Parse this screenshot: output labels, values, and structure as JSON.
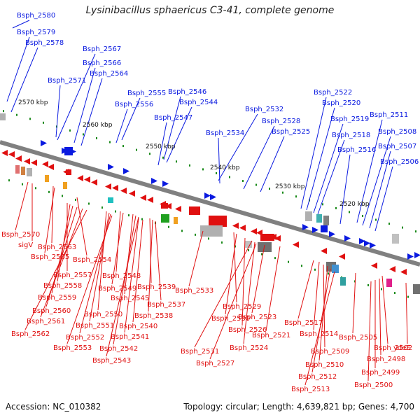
{
  "title": "Lysinibacillus sphaericus C3-41, complete genome",
  "accession": "Accession: NC_010382",
  "topology": "Topology: circular; Length: 4,639,821 bp; Genes: 4,700",
  "colors": {
    "forward": "#0a1ae0",
    "reverse": "#e01010",
    "backbone": "#808080",
    "tick_dot": "#1a8a1a"
  },
  "scale_ticks": [
    "2570 kbp",
    "2560 kbp",
    "2550 kbp",
    "2540 kbp",
    "2530 kbp",
    "2520 kbp"
  ],
  "forward_genes": [
    "Bsph_2580",
    "Bsph_2579",
    "Bsph_2578",
    "Bsph_2567",
    "Bsph_2566",
    "Bsph_2564",
    "Bsph_2571",
    "Bsph_2555",
    "Bsph_2556",
    "Bsph_2546",
    "Bsph_2544",
    "Bsph_2547",
    "Bsph_2532",
    "Bsph_2534",
    "Bsph_2528",
    "Bsph_2525",
    "Bsph_2522",
    "Bsph_2520",
    "Bsph_2519",
    "Bsph_2518",
    "Bsph_2516",
    "Bsph_2511",
    "Bsph_2508",
    "Bsph_2507",
    "Bsph_2506"
  ],
  "reverse_genes": [
    "Bsph_2570",
    "sigV",
    "Bsph_2563",
    "Bsph_2565",
    "Bsph_2554",
    "Bsph_2557",
    "Bsph_2558",
    "Bsph_2559",
    "Bsph_2560",
    "Bsph_2561",
    "Bsph_2562",
    "Bsph_2548",
    "Bsph_2549",
    "Bsph_2545",
    "Bsph_2550",
    "Bsph_2551",
    "Bsph_2552",
    "Bsph_2553",
    "Bsph_2542",
    "Bsph_2543",
    "Bsph_2541",
    "Bsph_2540",
    "Bsph_2539",
    "Bsph_2537",
    "Bsph_2538",
    "Bsph_2533",
    "Bsph_2529",
    "Bsph_2530",
    "Bsph_2526",
    "Bsph_2531",
    "Bsph_2524",
    "Bsph_2527",
    "Bsph_2523",
    "Bsph_2521",
    "Bsph_2517",
    "Bsph_2514",
    "Bsph_2509",
    "Bsph_2510",
    "Bsph_2512",
    "Bsph_2513",
    "Bsph_2505",
    "Bsph_2502",
    "ydeE",
    "Bsph_2498",
    "Bsph_2499",
    "Bsph_2500"
  ]
}
